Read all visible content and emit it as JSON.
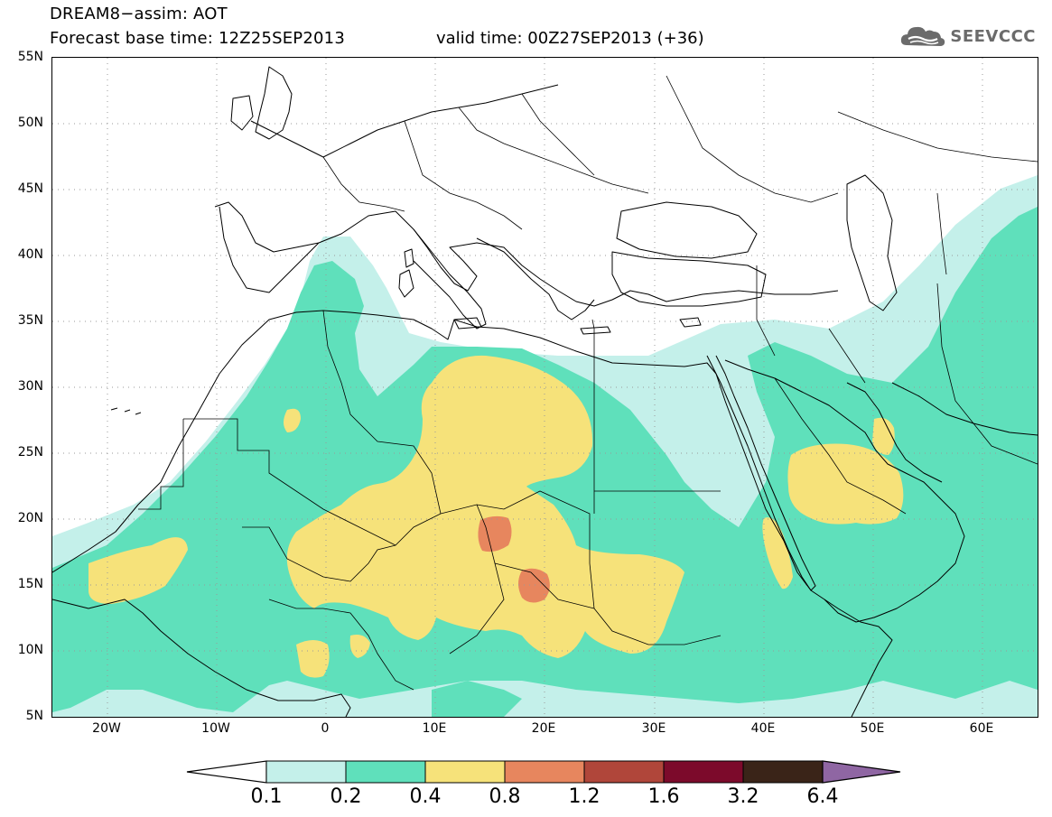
{
  "header": {
    "title_line1": "DREAM8−assim: AOT",
    "title_line2": "Forecast base time: 12Z25SEP2013",
    "valid_time": "valid time: 00Z27SEP2013 (+36)"
  },
  "brand": {
    "text": "SEEVCCC",
    "icon": "cloud-logo-icon"
  },
  "map": {
    "lon_range": [
      -25,
      65
    ],
    "lat_range": [
      5,
      55
    ],
    "lat_ticks": [
      "55N",
      "50N",
      "45N",
      "40N",
      "35N",
      "30N",
      "25N",
      "20N",
      "15N",
      "10N",
      "5N"
    ],
    "lon_ticks": [
      "20W",
      "10W",
      "0",
      "10E",
      "20E",
      "30E",
      "40E",
      "50E",
      "60E"
    ],
    "grid": "dotted"
  },
  "colorbar": {
    "labels": [
      "0.1",
      "0.2",
      "0.4",
      "0.8",
      "1.2",
      "1.6",
      "3.2",
      "6.4"
    ],
    "colors": [
      "#ffffff",
      "#c4f0ea",
      "#5fe0bb",
      "#f6e27a",
      "#e7865e",
      "#b0463a",
      "#7c0a2b",
      "#3a2418",
      "#8f66a3"
    ]
  }
}
